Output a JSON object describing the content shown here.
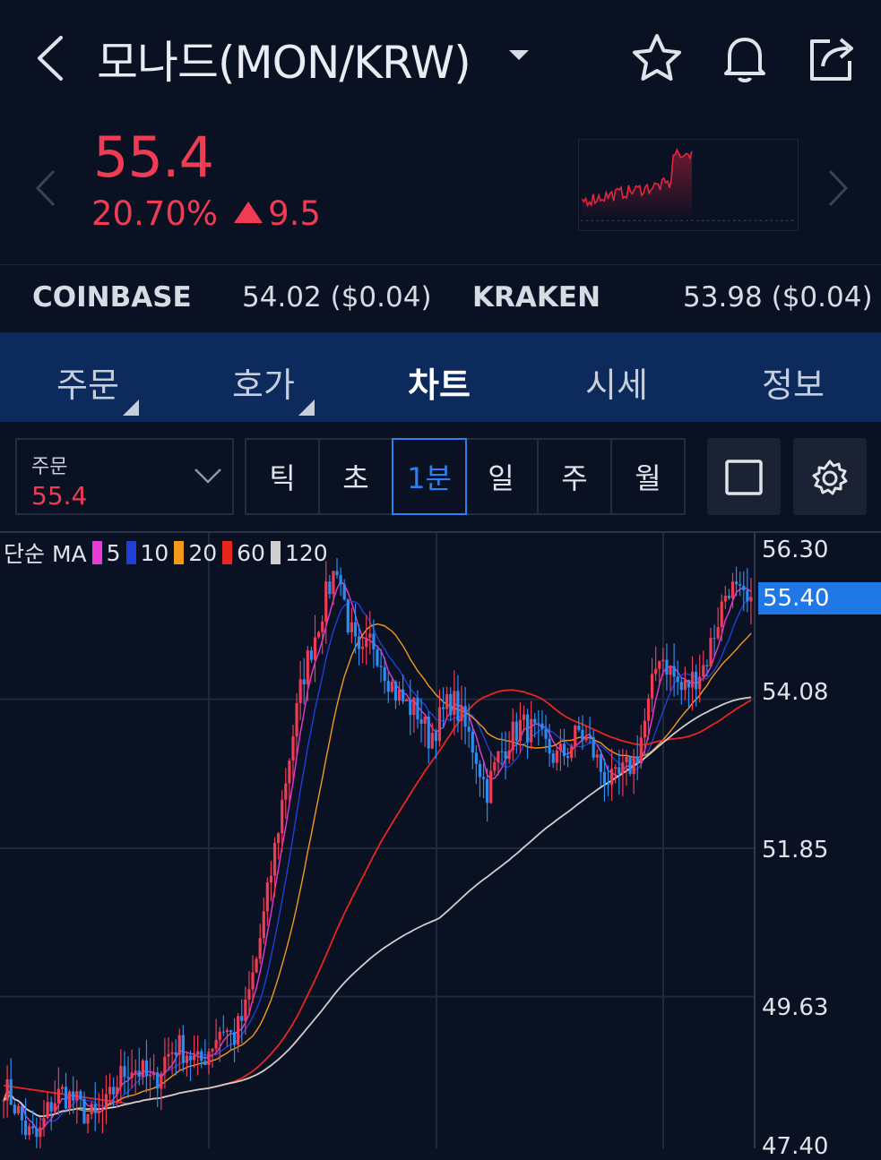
{
  "header": {
    "title": "모나드(MON/KRW)",
    "icons": [
      "back-chevron-icon",
      "dropdown-caret-icon",
      "star-icon",
      "bell-icon",
      "share-icon"
    ]
  },
  "quote": {
    "price": "55.4",
    "change_percent": "20.70%",
    "change_value": "9.5",
    "color_up": "#ef3b53"
  },
  "exchanges": [
    {
      "name": "COINBASE",
      "value": "54.02 ($0.04)"
    },
    {
      "name": "KRAKEN",
      "value": "53.98 ($0.04)"
    }
  ],
  "tabs": [
    {
      "label": "주문",
      "has_corner": true
    },
    {
      "label": "호가",
      "has_corner": true
    },
    {
      "label": "차트",
      "active": true
    },
    {
      "label": "시세"
    },
    {
      "label": "정보"
    }
  ],
  "toolbar": {
    "order_label": "주문",
    "order_value": "55.4",
    "periods": [
      "틱",
      "초",
      "1분",
      "일",
      "주",
      "월"
    ],
    "selected_period": "1분"
  },
  "chart": {
    "legend_prefix": "단순 MA",
    "ma": [
      {
        "period": "5",
        "color": "#e83ad6"
      },
      {
        "period": "10",
        "color": "#1f3fd8"
      },
      {
        "period": "20",
        "color": "#f39a1b"
      },
      {
        "period": "60",
        "color": "#e8251e"
      },
      {
        "period": "120",
        "color": "#cfcfcf"
      }
    ],
    "y_ticks": [
      "56.30",
      "54.08",
      "51.85",
      "49.63",
      "47.40"
    ],
    "current_tag": "55.40",
    "accent": "#1f78e6"
  },
  "chart_data": {
    "type": "candlestick",
    "y_range": [
      47.4,
      56.3
    ],
    "close_path": [
      48.3,
      48.0,
      47.6,
      47.5,
      48.0,
      48.2,
      48.1,
      47.9,
      47.8,
      48.0,
      48.4,
      48.6,
      48.5,
      48.3,
      48.7,
      48.9,
      48.8,
      48.6,
      48.9,
      49.2,
      49.0,
      49.4,
      50.2,
      51.2,
      52.3,
      53.4,
      54.4,
      55.0,
      55.6,
      56.1,
      55.2,
      54.6,
      55.0,
      54.6,
      54.2,
      54.0,
      53.9,
      53.5,
      53.8,
      54.1,
      53.7,
      53.3,
      52.7,
      53.2,
      53.5,
      53.7,
      53.6,
      53.4,
      53.2,
      53.3,
      53.6,
      53.4,
      53.0,
      52.8,
      53.0,
      53.2,
      53.9,
      54.8,
      54.5,
      54.2,
      54.4,
      54.6,
      55.2,
      55.8,
      55.6,
      55.4
    ],
    "ma_series": {
      "5": "follows price closely",
      "120": "rising from 48.2 to 54.0"
    }
  },
  "sparkline": {
    "color": "#e8253f"
  }
}
